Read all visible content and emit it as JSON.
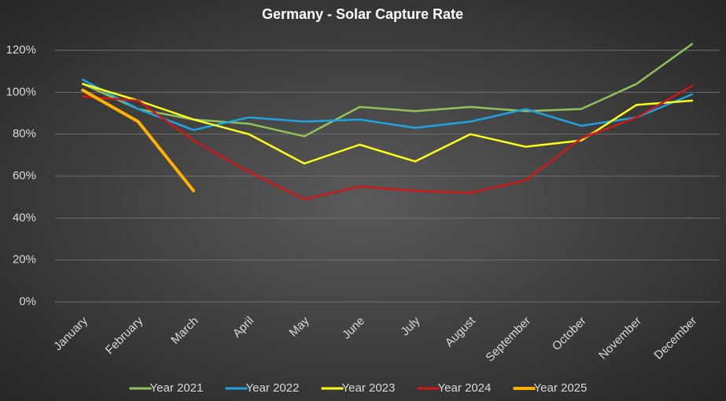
{
  "chart_data": {
    "type": "line",
    "title": "Germany - Solar Capture Rate",
    "categories": [
      "January",
      "February",
      "March",
      "April",
      "May",
      "June",
      "July",
      "August",
      "September",
      "October",
      "November",
      "December"
    ],
    "series": [
      {
        "name": "Year 2021",
        "color": "#8fc35a",
        "values": [
          104,
          92,
          87,
          85,
          79,
          93,
          91,
          93,
          91,
          92,
          104,
          123
        ]
      },
      {
        "name": "Year 2022",
        "color": "#1fa3e0",
        "values": [
          106,
          92,
          82,
          88,
          86,
          87,
          83,
          86,
          92,
          84,
          88,
          99
        ]
      },
      {
        "name": "Year 2023",
        "color": "#ffff1a",
        "values": [
          104,
          96,
          87,
          80,
          66,
          75,
          67,
          80,
          74,
          77,
          94,
          96
        ]
      },
      {
        "name": "Year 2024",
        "color": "#d01818",
        "values": [
          98,
          96,
          77,
          62,
          49,
          55,
          53,
          52,
          58,
          78,
          88,
          103
        ]
      },
      {
        "name": "Year 2025",
        "color": "#ffb000",
        "values": [
          101,
          86,
          53,
          null,
          null,
          null,
          null,
          null,
          null,
          null,
          null,
          null
        ]
      }
    ],
    "ylim": [
      0,
      120
    ],
    "yticks": [
      {
        "value": 0,
        "label": "0%"
      },
      {
        "value": 20,
        "label": "20%"
      },
      {
        "value": 40,
        "label": "40%"
      },
      {
        "value": 60,
        "label": "60%"
      },
      {
        "value": 80,
        "label": "80%"
      },
      {
        "value": 100,
        "label": "100%"
      },
      {
        "value": 120,
        "label": "120%"
      }
    ],
    "grid": true,
    "legend": "bottom"
  }
}
